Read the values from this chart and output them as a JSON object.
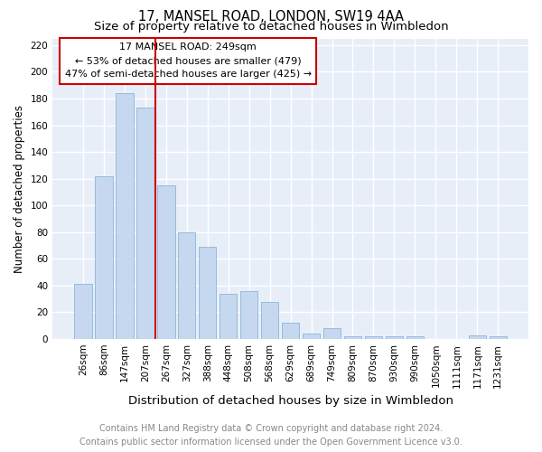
{
  "title": "17, MANSEL ROAD, LONDON, SW19 4AA",
  "subtitle": "Size of property relative to detached houses in Wimbledon",
  "xlabel": "Distribution of detached houses by size in Wimbledon",
  "ylabel": "Number of detached properties",
  "categories": [
    "26sqm",
    "86sqm",
    "147sqm",
    "207sqm",
    "267sqm",
    "327sqm",
    "388sqm",
    "448sqm",
    "508sqm",
    "568sqm",
    "629sqm",
    "689sqm",
    "749sqm",
    "809sqm",
    "870sqm",
    "930sqm",
    "990sqm",
    "1050sqm",
    "1111sqm",
    "1171sqm",
    "1231sqm"
  ],
  "values": [
    41,
    122,
    184,
    173,
    115,
    80,
    69,
    34,
    36,
    28,
    12,
    4,
    8,
    2,
    2,
    2,
    2,
    0,
    0,
    3,
    2
  ],
  "bar_color": "#c5d8f0",
  "bar_edge_color": "#7aadd4",
  "vline_color": "#cc0000",
  "box_edge_color": "#cc0000",
  "ylim": [
    0,
    225
  ],
  "yticks": [
    0,
    20,
    40,
    60,
    80,
    100,
    120,
    140,
    160,
    180,
    200,
    220
  ],
  "footer_line1": "Contains HM Land Registry data © Crown copyright and database right 2024.",
  "footer_line2": "Contains public sector information licensed under the Open Government Licence v3.0.",
  "background_color": "#e8eef8",
  "grid_color": "#ffffff",
  "title_fontsize": 10.5,
  "subtitle_fontsize": 9.5,
  "xlabel_fontsize": 9.5,
  "ylabel_fontsize": 8.5,
  "tick_fontsize": 7.5,
  "footer_fontsize": 7,
  "annotation_fontsize": 8,
  "annotation_line1": "17 MANSEL ROAD: 249sqm",
  "annotation_line2": "← 53% of detached houses are smaller (479)",
  "annotation_line3": "47% of semi-detached houses are larger (425) →"
}
